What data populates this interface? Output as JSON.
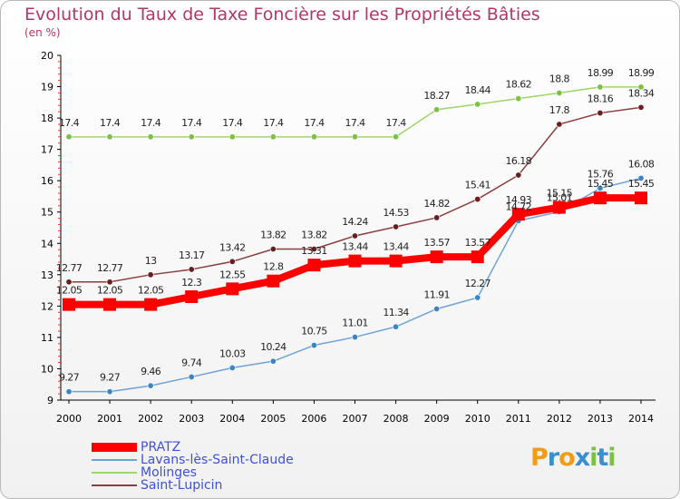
{
  "header": {
    "title": "Evolution du Taux de Taxe Foncière sur les Propriétés Bâties",
    "unit": "(en %)"
  },
  "logo": {
    "letters": [
      "P",
      "r",
      "o",
      "x",
      "i",
      "t",
      "i"
    ],
    "colors": [
      "#f39c12",
      "#3a8fd0",
      "#f39c12",
      "#3a8fd0",
      "#7cc242",
      "#3a8fd0",
      "#7cc242"
    ]
  },
  "chart_data": {
    "type": "line",
    "x": [
      "2000",
      "2001",
      "2002",
      "2003",
      "2004",
      "2005",
      "2006",
      "2007",
      "2008",
      "2009",
      "2010",
      "2011",
      "2012",
      "2013",
      "2014"
    ],
    "ylim": [
      9,
      20
    ],
    "yticks": [
      9,
      10,
      11,
      12,
      13,
      14,
      15,
      16,
      17,
      18,
      19,
      20
    ],
    "grid": false,
    "legend_position": "bottom-left",
    "series": [
      {
        "name": "PRATZ",
        "color": "#ff0000",
        "labels": [
          "12.05",
          "12.05",
          "12.05",
          "12.3",
          "12.55",
          "12.8",
          "13.31",
          "13.44",
          "13.44",
          "13.57",
          "13.57",
          "14.93",
          "15.15",
          "15.45",
          "15.45"
        ],
        "values": [
          12.05,
          12.05,
          12.05,
          12.3,
          12.55,
          12.8,
          13.31,
          13.44,
          13.44,
          13.57,
          13.57,
          14.93,
          15.15,
          15.45,
          15.45
        ]
      },
      {
        "name": "Lavans-lès-Saint-Claude",
        "color": "#6fa3d6",
        "marker": "#3a85c6",
        "labels": [
          "9.27",
          "9.27",
          "9.46",
          "9.74",
          "10.03",
          "10.24",
          "10.75",
          "11.01",
          "11.34",
          "11.91",
          "12.27",
          "14.72",
          "15.01",
          "15.76",
          "16.08"
        ],
        "values": [
          9.27,
          9.27,
          9.46,
          9.74,
          10.03,
          10.24,
          10.75,
          11.01,
          11.34,
          11.91,
          12.27,
          14.72,
          15.01,
          15.76,
          16.08
        ]
      },
      {
        "name": "Molinges",
        "color": "#9ed66a",
        "marker": "#7cc242",
        "labels": [
          "17.4",
          "17.4",
          "17.4",
          "17.4",
          "17.4",
          "17.4",
          "17.4",
          "17.4",
          "17.4",
          "18.27",
          "18.44",
          "18.62",
          "18.8",
          "18.99",
          "18.99"
        ],
        "values": [
          17.4,
          17.4,
          17.4,
          17.4,
          17.4,
          17.4,
          17.4,
          17.4,
          17.4,
          18.27,
          18.44,
          18.62,
          18.8,
          18.99,
          18.99
        ]
      },
      {
        "name": "Saint-Lupicin",
        "color": "#8a3e3e",
        "marker": "#6a1f1f",
        "labels": [
          "12.77",
          "12.77",
          "13",
          "13.17",
          "13.42",
          "13.82",
          "13.82",
          "14.24",
          "14.53",
          "14.82",
          "15.41",
          "16.18",
          "17.8",
          "18.16",
          "18.34"
        ],
        "values": [
          12.77,
          12.77,
          13,
          13.17,
          13.42,
          13.82,
          13.82,
          14.24,
          14.53,
          14.82,
          15.41,
          16.18,
          17.8,
          18.16,
          18.34
        ]
      }
    ]
  }
}
